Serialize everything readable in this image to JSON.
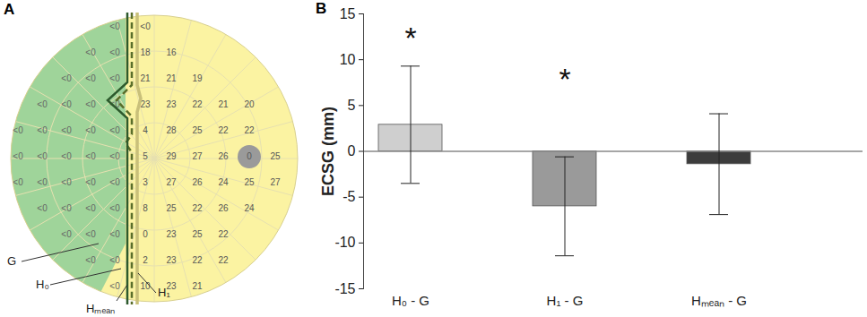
{
  "chart_data": {
    "type": "bar",
    "title": "B",
    "categories": [
      "H₀ - G",
      "H₁ - G",
      "Hₘₑₐₙ - G"
    ],
    "values": [
      2.9,
      -6.0,
      -1.4
    ],
    "errors": [
      6.4,
      5.4,
      5.5
    ],
    "colors": [
      "#cfcfcf",
      "#9a9a9a",
      "#3c3c3c"
    ],
    "ylabel": "ECSG (mm)",
    "ylim": [
      -15,
      15
    ],
    "yticks": [
      -15,
      -10,
      -5,
      0,
      5,
      10,
      15
    ],
    "annotations": [
      {
        "category": "H₀ - G",
        "y": 12.3,
        "text": "*"
      },
      {
        "category": "H₁ - G",
        "y": 7.8,
        "text": "*"
      }
    ]
  },
  "diagram": {
    "title": "A",
    "rows": [
      {
        "left": [
          "<0"
        ],
        "right": [
          "<0"
        ]
      },
      {
        "left": [
          "<0",
          "<0"
        ],
        "right": [
          "18",
          "16"
        ]
      },
      {
        "left": [
          "<0",
          "<0",
          "<0"
        ],
        "right": [
          "21",
          "21",
          "19"
        ]
      },
      {
        "left": [
          "<0",
          "<0",
          "<0",
          "<0"
        ],
        "right": [
          "23",
          "23",
          "22",
          "21",
          "20"
        ]
      },
      {
        "left": [
          "<0",
          "<0",
          "<0",
          "<0",
          "<0"
        ],
        "right": [
          "4",
          "28",
          "25",
          "22",
          "22"
        ]
      },
      {
        "left": [
          "<0",
          "<0",
          "<0",
          "<0",
          "<0"
        ],
        "right": [
          "5",
          "29",
          "27",
          "26",
          {
            "label": "0",
            "blind_spot": true
          },
          "25"
        ]
      },
      {
        "left": [
          "<0",
          "<0",
          "<0",
          "<0",
          "<0"
        ],
        "right": [
          "3",
          "27",
          "26",
          "24",
          "25",
          "27"
        ]
      },
      {
        "left": [
          "<0",
          "<0",
          "<0",
          "<0"
        ],
        "right": [
          "8",
          "25",
          "22",
          "26",
          "24"
        ]
      },
      {
        "left": [
          "<0",
          "<0",
          "<0"
        ],
        "right": [
          "0",
          "23",
          "25",
          "22"
        ]
      },
      {
        "left": [
          "<0",
          "<0"
        ],
        "right": [
          "2",
          "23",
          "22",
          "22"
        ]
      },
      {
        "left": [
          "<0"
        ],
        "right": [
          "10",
          "23",
          "21"
        ]
      }
    ],
    "lines": [
      {
        "label": "G"
      },
      {
        "label": "H₀",
        "color": "#5a6e2a",
        "line_style": "dashed"
      },
      {
        "label": "Hₘₑₐₙ",
        "color": "#2d5a2d",
        "line_style": "solid"
      },
      {
        "label": "H₁",
        "color": "#c9c07a",
        "line_style": "solid"
      }
    ]
  }
}
